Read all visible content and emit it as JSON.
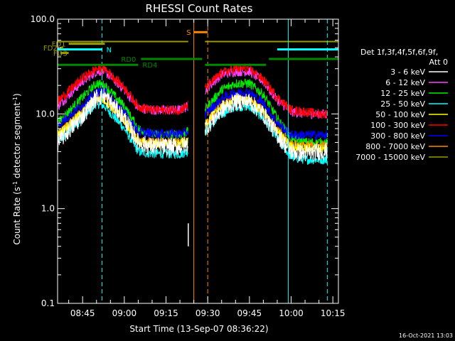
{
  "chart_data": {
    "type": "line",
    "title": "RHESSI Count Rates",
    "xlabel": "Start Time (13-Sep-07 08:36:22)",
    "ylabel": "Count Rate (s⁻¹ detector segment⁻¹)",
    "ylabel_parts": [
      "Count Rate (s",
      "-1",
      " detector segment",
      "-1",
      ")"
    ],
    "y_scale": "log",
    "ylim": [
      0.1,
      100.0
    ],
    "y_ticks": [
      "0.1",
      "1.0",
      "10.0",
      "100.0"
    ],
    "x_range": [
      "08:36",
      "10:17"
    ],
    "x_ticks": [
      "08:45",
      "09:00",
      "09:15",
      "09:30",
      "09:45",
      "10:00",
      "10:15"
    ],
    "footer_date": "16-Oct-2021 13:03",
    "legend_header": [
      "Det 1f,3f,4f,5f,6f,9f,",
      "Att 0"
    ],
    "legend_position": "right",
    "series": [
      {
        "name": "3 - 6 keV",
        "color": "#ffffff",
        "x": [
          "08:36",
          "08:45",
          "08:50",
          "08:53",
          "09:00",
          "09:05",
          "09:10",
          "09:15",
          "09:20",
          "09:23",
          "09:30",
          "09:35",
          "09:40",
          "09:45",
          "09:50",
          "09:55",
          "10:00",
          "10:05",
          "10:10",
          "10:13"
        ],
        "y": [
          5.0,
          9.5,
          15.0,
          15.5,
          9.0,
          5.0,
          4.5,
          4.5,
          4.5,
          4.8,
          7.5,
          11.0,
          13.5,
          13.5,
          10.0,
          6.0,
          4.0,
          3.8,
          4.0,
          4.0
        ]
      },
      {
        "name": "6 - 12 keV",
        "color": "#ff44ff",
        "x": [
          "08:36",
          "08:45",
          "08:50",
          "08:53",
          "09:00",
          "09:05",
          "09:10",
          "09:15",
          "09:20",
          "09:23",
          "09:30",
          "09:35",
          "09:40",
          "09:45",
          "09:50",
          "09:55",
          "10:00",
          "10:05",
          "10:10",
          "10:13"
        ],
        "y": [
          12.0,
          22.0,
          28.0,
          28.0,
          18.0,
          11.5,
          11.0,
          11.0,
          11.0,
          12.0,
          19.0,
          26.0,
          28.0,
          28.0,
          22.0,
          14.0,
          10.5,
          10.0,
          10.0,
          10.0
        ]
      },
      {
        "name": "12 - 25 keV",
        "color": "#00ee00",
        "x": [
          "08:36",
          "08:45",
          "08:50",
          "08:53",
          "09:00",
          "09:05",
          "09:10",
          "09:15",
          "09:20",
          "09:23",
          "09:30",
          "09:35",
          "09:40",
          "09:45",
          "09:50",
          "09:55",
          "10:00",
          "10:05",
          "10:10",
          "10:13"
        ],
        "y": [
          8.0,
          15.0,
          21.0,
          20.0,
          12.0,
          7.0,
          6.0,
          6.0,
          6.0,
          6.5,
          12.0,
          18.0,
          21.0,
          21.0,
          16.0,
          9.0,
          5.5,
          5.0,
          5.0,
          5.0
        ]
      },
      {
        "name": "25 - 50 keV",
        "color": "#00ffff",
        "x": [
          "08:36",
          "08:45",
          "08:50",
          "08:53",
          "09:00",
          "09:05",
          "09:10",
          "09:15",
          "09:20",
          "09:23",
          "09:30",
          "09:35",
          "09:40",
          "09:45",
          "09:50",
          "09:55",
          "10:00",
          "10:05",
          "10:10",
          "10:13"
        ],
        "y": [
          5.0,
          9.0,
          13.0,
          12.0,
          7.0,
          4.0,
          3.8,
          3.8,
          3.8,
          4.0,
          7.0,
          10.0,
          12.0,
          12.0,
          9.0,
          5.5,
          3.5,
          3.3,
          3.3,
          3.3
        ]
      },
      {
        "name": "50 - 100 keV",
        "color": "#ffff00",
        "x": [
          "08:36",
          "08:45",
          "08:50",
          "08:53",
          "09:00",
          "09:05",
          "09:10",
          "09:15",
          "09:20",
          "09:23",
          "09:30",
          "09:35",
          "09:40",
          "09:45",
          "09:50",
          "09:55",
          "10:00",
          "10:05",
          "10:10",
          "10:13"
        ],
        "y": [
          6.0,
          10.5,
          14.5,
          14.0,
          8.5,
          5.0,
          4.8,
          4.8,
          4.8,
          5.0,
          8.5,
          12.0,
          14.0,
          14.0,
          10.5,
          6.5,
          4.5,
          4.3,
          4.3,
          4.3
        ]
      },
      {
        "name": "100 - 300 keV",
        "color": "#ff0000",
        "x": [
          "08:36",
          "08:45",
          "08:50",
          "08:53",
          "09:00",
          "09:05",
          "09:10",
          "09:15",
          "09:20",
          "09:23",
          "09:30",
          "09:35",
          "09:40",
          "09:45",
          "09:50",
          "09:55",
          "10:00",
          "10:05",
          "10:10",
          "10:13"
        ],
        "y": [
          13.5,
          24.0,
          30.0,
          30.0,
          19.0,
          12.0,
          11.0,
          11.0,
          11.0,
          12.5,
          20.0,
          27.0,
          30.0,
          30.0,
          23.0,
          15.0,
          11.0,
          10.5,
          10.0,
          10.0
        ]
      },
      {
        "name": "300 - 800 keV",
        "color": "#0000ff",
        "x": [
          "08:36",
          "08:45",
          "08:50",
          "08:53",
          "09:00",
          "09:05",
          "09:10",
          "09:15",
          "09:20",
          "09:23",
          "09:30",
          "09:35",
          "09:40",
          "09:45",
          "09:50",
          "09:55",
          "10:00",
          "10:05",
          "10:10",
          "10:13"
        ],
        "y": [
          7.5,
          12.5,
          17.0,
          17.0,
          10.5,
          6.5,
          6.2,
          6.2,
          6.2,
          6.5,
          10.5,
          14.5,
          17.0,
          17.0,
          13.0,
          8.0,
          6.0,
          6.0,
          6.0,
          6.0
        ]
      },
      {
        "name": "800 - 7000 keV",
        "color": "#ff8800",
        "x": [
          "08:36",
          "08:45",
          "08:50",
          "08:53",
          "09:00",
          "09:05",
          "09:10",
          "09:15",
          "09:20",
          "09:23",
          "09:30",
          "09:35",
          "09:40",
          "09:45",
          "09:50",
          "09:55",
          "10:00",
          "10:05",
          "10:10",
          "10:13"
        ],
        "y": [
          6.0,
          10.5,
          15.0,
          14.5,
          8.5,
          5.2,
          5.0,
          5.0,
          5.0,
          5.2,
          8.5,
          12.5,
          14.5,
          14.5,
          11.0,
          6.8,
          4.8,
          4.6,
          4.6,
          4.6
        ]
      },
      {
        "name": "7000 - 15000 keV",
        "color": "#999900",
        "x": [
          "08:36",
          "10:17"
        ],
        "y": [
          58.0,
          58.0
        ]
      }
    ],
    "annotations": [
      {
        "label": "N",
        "color": "#00ffff",
        "segments": [
          [
            "08:36",
            "08:52"
          ],
          [
            "09:55",
            "10:17"
          ]
        ],
        "y": 48.0
      },
      {
        "label": "FD1",
        "color": "#999900",
        "segments": [
          [
            "08:40",
            "08:53"
          ]
        ],
        "y": 55.0
      },
      {
        "label": "FD2",
        "color": "#999900",
        "segments": [
          [
            "08:37",
            "08:38"
          ]
        ],
        "y": 50.0
      },
      {
        "label": "FD3",
        "color": "#999900",
        "segments": [
          [
            "08:37",
            "08:40"
          ]
        ],
        "y": 44.0
      },
      {
        "label": "RD0",
        "color": "#008800",
        "segments": [
          [
            "09:06",
            "09:28"
          ],
          [
            "09:52",
            "10:17"
          ]
        ],
        "y": 38.0
      },
      {
        "label": "RD4",
        "color": "#008800",
        "segments": [
          [
            "08:36",
            "09:05"
          ],
          [
            "09:29",
            "09:51"
          ]
        ],
        "y": 33.0
      },
      {
        "label": "S",
        "color": "#ff8800",
        "segments": [
          [
            "09:25",
            "09:30"
          ]
        ],
        "y": 73.0
      }
    ],
    "vertical_markers": [
      {
        "x": "08:36",
        "color": "#00ffff",
        "style": "solid"
      },
      {
        "x": "08:52",
        "color": "#00ffff",
        "style": "dashed"
      },
      {
        "x": "09:25",
        "color": "#ff8800",
        "style": "solid"
      },
      {
        "x": "09:30",
        "color": "#ff8800",
        "style": "dashed"
      },
      {
        "x": "09:59",
        "color": "#00ffff",
        "style": "solid"
      },
      {
        "x": "10:13",
        "color": "#00ffff",
        "style": "dashed"
      }
    ],
    "gaps": [
      [
        "09:23",
        "09:29"
      ]
    ],
    "outliers": [
      {
        "x": "09:23",
        "y": [
          0.7,
          0.4
        ]
      }
    ]
  }
}
